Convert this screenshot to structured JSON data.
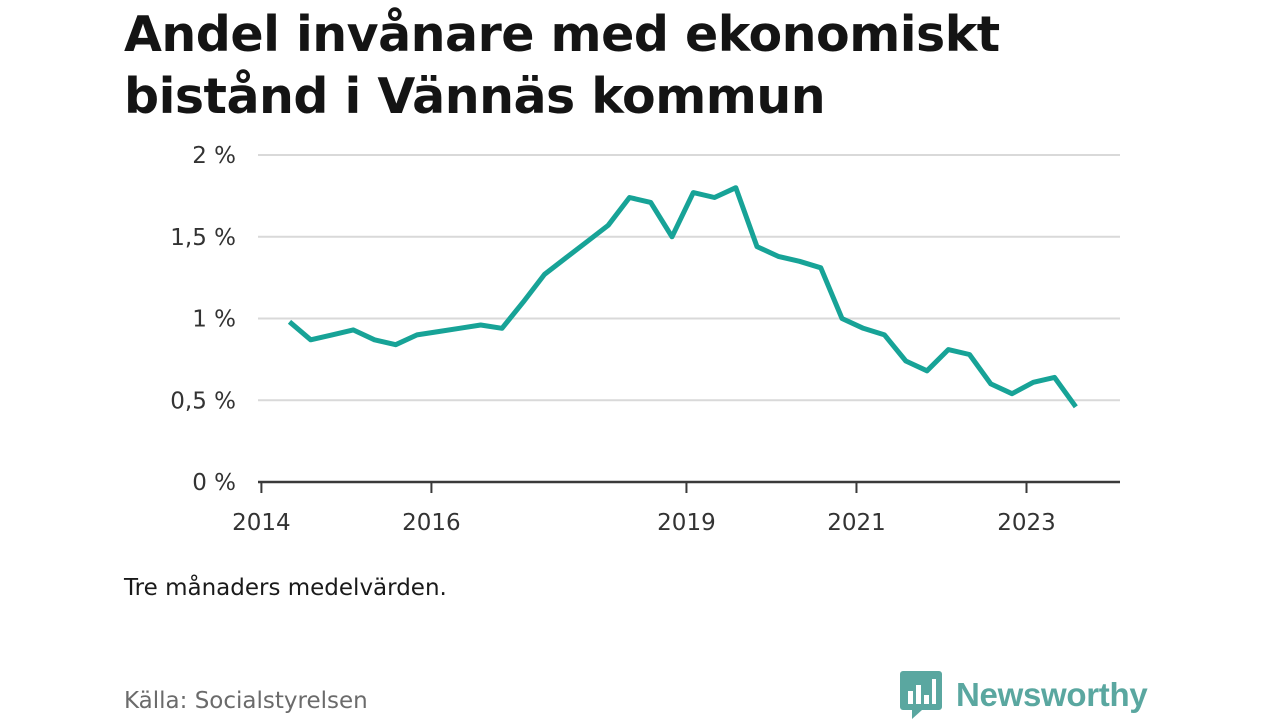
{
  "title": "Andel invånare med ekonomiskt bistånd i Vännäs kommun",
  "note": "Tre månaders medelvärden.",
  "source": "Källa: Socialstyrelsen",
  "brand": {
    "name": "Newsworthy",
    "logo_icon": "bar-chart-speech-bubble-icon",
    "color": "#5aa7a0"
  },
  "chart_data": {
    "type": "line",
    "title": "Andel invånare med ekonomiskt bistånd i Vännäs kommun",
    "xlabel": "",
    "ylabel": "",
    "x_ticks": [
      2014,
      2016,
      2019,
      2021,
      2023
    ],
    "y_ticks": [
      {
        "value": 0,
        "label": "0 %"
      },
      {
        "value": 0.5,
        "label": "0,5 %"
      },
      {
        "value": 1,
        "label": "1 %"
      },
      {
        "value": 1.5,
        "label": "1,5 %"
      },
      {
        "value": 2,
        "label": "2 %"
      }
    ],
    "xlim": [
      2013.96,
      2024.1
    ],
    "ylim": [
      0,
      2
    ],
    "grid": true,
    "line_color": "#17a397",
    "series": [
      {
        "x": [
          2014.33,
          2014.58,
          2014.83,
          2015.08,
          2015.33,
          2015.58,
          2015.83,
          2016.08,
          2016.33,
          2016.58,
          2016.83,
          2017.08,
          2017.33,
          2017.58,
          2017.83,
          2018.08,
          2018.33,
          2018.58,
          2018.83,
          2019.08,
          2019.33,
          2019.58,
          2019.83,
          2020.08,
          2020.33,
          2020.58,
          2020.83,
          2021.08,
          2021.33,
          2021.58,
          2021.83,
          2022.08,
          2022.33,
          2022.58,
          2022.83,
          2023.08,
          2023.33,
          2023.58
        ],
        "values": [
          0.98,
          0.87,
          0.9,
          0.93,
          0.87,
          0.84,
          0.9,
          0.92,
          0.94,
          0.96,
          0.94,
          1.1,
          1.27,
          1.37,
          1.47,
          1.57,
          1.74,
          1.71,
          1.5,
          1.77,
          1.74,
          1.8,
          1.44,
          1.38,
          1.35,
          1.31,
          1.0,
          0.94,
          0.9,
          0.74,
          0.68,
          0.81,
          0.78,
          0.6,
          0.54,
          0.61,
          0.64,
          0.46
        ]
      }
    ]
  }
}
